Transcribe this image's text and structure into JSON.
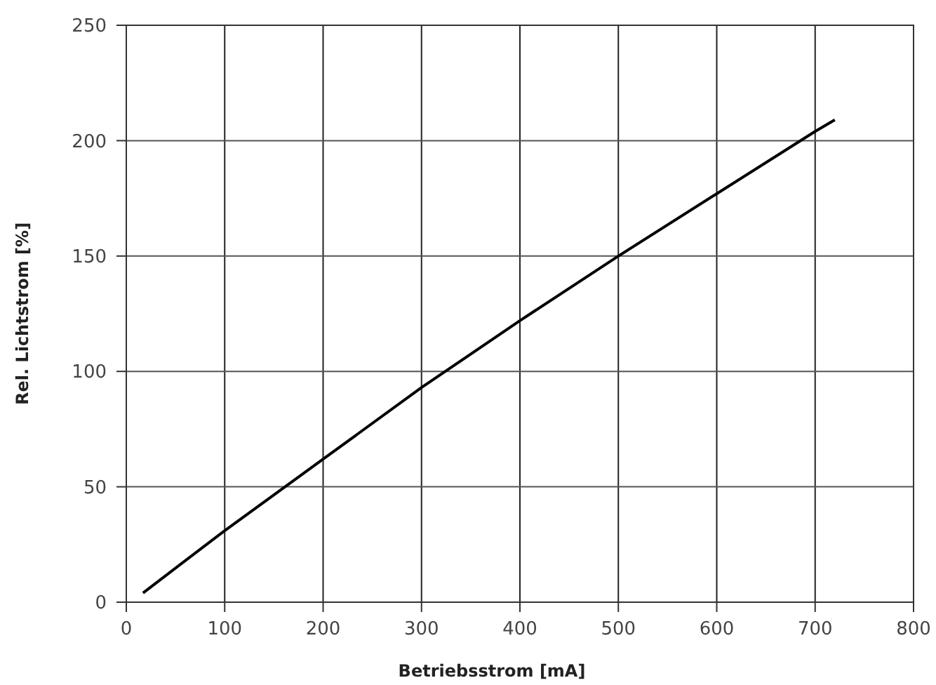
{
  "chart_data": {
    "type": "line",
    "xlabel": "Betriebsstrom [mA]",
    "ylabel": "Rel. Lichtstrom [%]",
    "x": [
      17,
      100,
      200,
      300,
      400,
      500,
      600,
      700,
      720
    ],
    "series": [
      {
        "color": "#000000",
        "values": [
          4,
          31,
          62,
          93,
          122,
          150,
          177,
          204,
          209
        ]
      }
    ],
    "xlim": [
      0,
      800
    ],
    "xticks": [
      0,
      100,
      200,
      300,
      400,
      500,
      600,
      700,
      800
    ],
    "ylim": [
      0,
      250
    ],
    "yticks": [
      0,
      50,
      100,
      150,
      200,
      250
    ],
    "grid": true
  }
}
